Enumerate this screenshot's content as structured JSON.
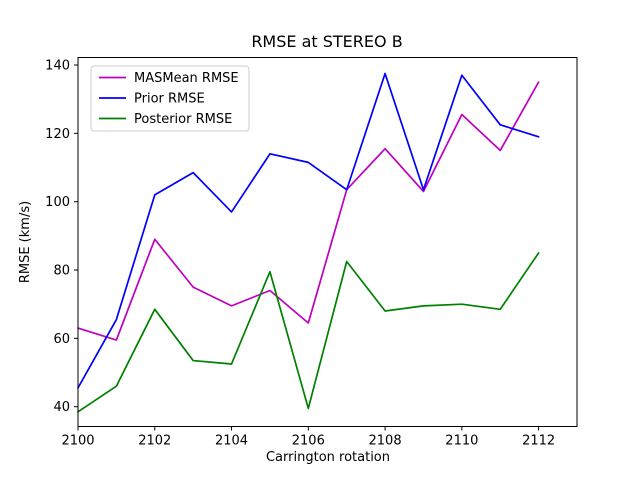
{
  "chart_data": {
    "type": "line",
    "title": "RMSE at STEREO B",
    "xlabel": "Carrington rotation",
    "ylabel": "RMSE (km/s)",
    "x": [
      2100,
      2101,
      2102,
      2103,
      2104,
      2105,
      2106,
      2107,
      2108,
      2109,
      2110,
      2111,
      2112
    ],
    "series": [
      {
        "name": "MASMean RMSE",
        "color": "#bf00bf",
        "values": [
          63,
          59.5,
          89,
          75,
          69.5,
          74,
          64.5,
          103.5,
          115.5,
          103,
          125.5,
          115,
          135
        ]
      },
      {
        "name": "Prior RMSE",
        "color": "#0000ff",
        "values": [
          45.5,
          65.5,
          102,
          108.5,
          97,
          114,
          111.5,
          103.5,
          137.5,
          103.5,
          137,
          122.5,
          119
        ]
      },
      {
        "name": "Posterior RMSE",
        "color": "#008000",
        "values": [
          38.5,
          46,
          68.5,
          53.5,
          52.5,
          79.5,
          39.5,
          82.5,
          68,
          69.5,
          70,
          68.5,
          85
        ]
      }
    ],
    "xlim": [
      2100,
      2113
    ],
    "ylim": [
      34.2,
      142.2
    ],
    "xticks": [
      2100,
      2102,
      2104,
      2106,
      2108,
      2110,
      2112
    ],
    "yticks": [
      40,
      60,
      80,
      100,
      120,
      140
    ],
    "legend_position": "upper left",
    "grid": false,
    "axis_color": "#000000",
    "legend_border_color": "#cccccc"
  }
}
